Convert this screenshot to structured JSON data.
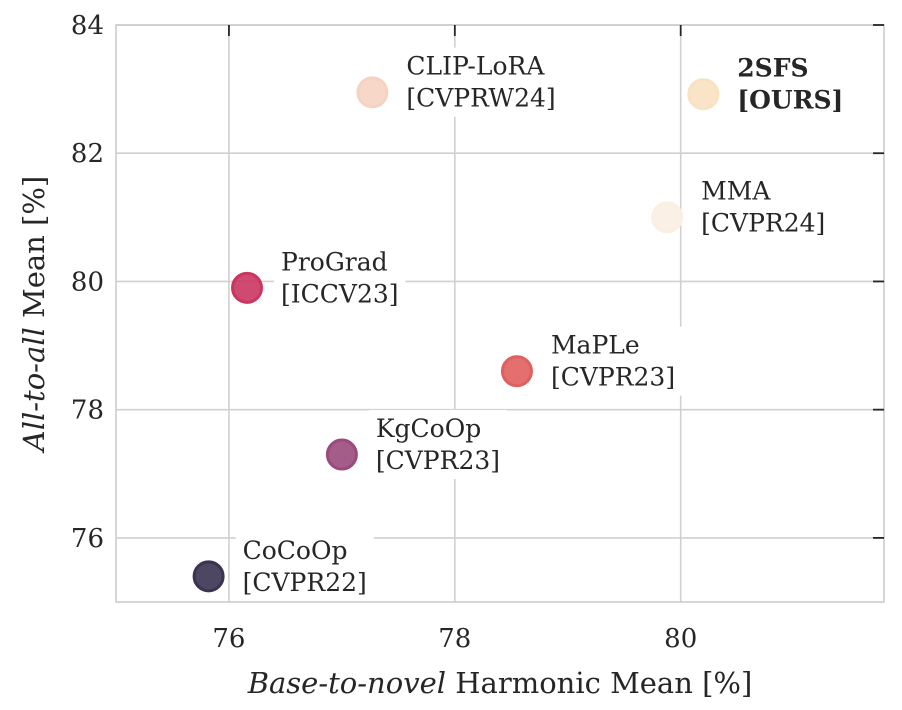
{
  "chart_data": {
    "type": "scatter",
    "xlabel_italic": "Base-to-novel",
    "xlabel_rest": " Harmonic Mean [%]",
    "ylabel_italic": "All-to-all",
    "ylabel_rest": " Mean [%]",
    "xlim": [
      75.0,
      81.8
    ],
    "ylim": [
      75.0,
      84.0
    ],
    "xticks": [
      76,
      78,
      80
    ],
    "yticks": [
      76,
      78,
      80,
      82,
      84
    ],
    "xtick_labels": [
      "76",
      "78",
      "80"
    ],
    "ytick_labels": [
      "76",
      "78",
      "80",
      "82",
      "84"
    ],
    "grid": true,
    "points": [
      {
        "x": 75.82,
        "y": 75.4,
        "color": "#3b3350",
        "label_lines": [
          "CoCoOp",
          "[CVPR22]"
        ],
        "bold": false
      },
      {
        "x": 77.0,
        "y": 77.3,
        "color": "#9a4a7b",
        "label_lines": [
          "KgCoOp",
          "[CVPR23]"
        ],
        "bold": false
      },
      {
        "x": 76.16,
        "y": 79.9,
        "color": "#c9365f",
        "label_lines": [
          "ProGrad",
          "[ICCV23]"
        ],
        "bold": false
      },
      {
        "x": 78.55,
        "y": 78.6,
        "color": "#e05f5f",
        "label_lines": [
          "MaPLe",
          "[CVPR23]"
        ],
        "bold": false
      },
      {
        "x": 77.27,
        "y": 82.95,
        "color": "#f5d3c2",
        "label_lines": [
          "CLIP-LoRA",
          "[CVPRW24]"
        ],
        "bold": false
      },
      {
        "x": 79.88,
        "y": 81.0,
        "color": "#fbeee3",
        "label_lines": [
          "MMA",
          "[CVPR24]"
        ],
        "bold": false
      },
      {
        "x": 80.2,
        "y": 82.92,
        "color": "#fae1c2",
        "label_lines": [
          "2SFS",
          "[OURS]"
        ],
        "bold": true
      }
    ]
  }
}
